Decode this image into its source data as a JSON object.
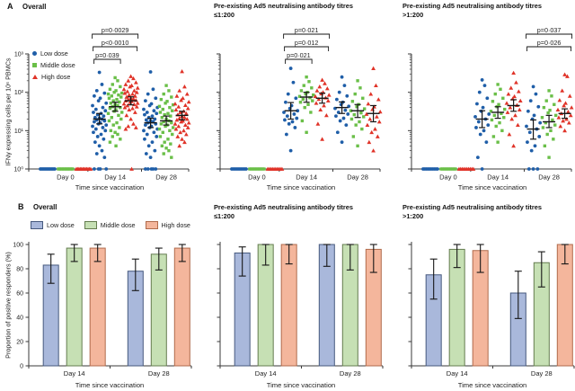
{
  "panels": {
    "a_label": "A",
    "b_label": "B",
    "overall_title": "Overall",
    "preexisting_line1": "Pre-existing Ad5 neutralising antibody titres",
    "le_line2": "≤1:200",
    "gt_line2": ">1:200"
  },
  "axes": {
    "scatter_ylabel": "IFNγ expressing cells per 10⁶ PBMCs",
    "scatter_xlabel": "Time since vaccination",
    "bar_ylabel": "Proportion of positive responders (%)",
    "bar_xlabel": "Time since vaccination",
    "scatter_ytick_labels": [
      "10⁰",
      "10¹",
      "10²",
      "10³"
    ],
    "scatter_ytick_values": [
      1,
      10,
      100,
      1000
    ],
    "scatter_xticks": [
      "Day 0",
      "Day 14",
      "Day 28"
    ],
    "bar_ytick_values": [
      0,
      20,
      40,
      60,
      80,
      100
    ],
    "bar_xticks": [
      "Day 14",
      "Day 28"
    ]
  },
  "legend_a": [
    {
      "label": "Low dose",
      "marker": "circle",
      "color": "#1f5ea8"
    },
    {
      "label": "Middle dose",
      "marker": "square",
      "color": "#6abf48"
    },
    {
      "label": "High dose",
      "marker": "triangle",
      "color": "#e03328"
    }
  ],
  "legend_b": [
    {
      "label": "Low dose",
      "fill": "#a9b8db",
      "stroke": "#46597e"
    },
    {
      "label": "Middle dose",
      "fill": "#c6e0b4",
      "stroke": "#647c4f"
    },
    {
      "label": "High dose",
      "fill": "#f4b69c",
      "stroke": "#b06b4c"
    }
  ],
  "chart_data": [
    {
      "type": "scatter",
      "title": "Overall",
      "ylog_range": [
        1,
        1000
      ],
      "groups": [
        "Day 0",
        "Day 14",
        "Day 28"
      ],
      "series": [
        {
          "name": "Low dose",
          "marker": "circle",
          "color": "#1f5ea8",
          "day0_value": 1,
          "day0_n": 12,
          "day14": [
            330,
            160,
            110,
            95,
            80,
            70,
            60,
            52,
            45,
            40,
            36,
            33,
            30,
            28,
            26,
            24,
            22,
            21,
            20,
            19,
            18,
            17,
            16,
            15,
            14,
            13,
            12,
            11,
            10,
            9,
            8,
            7,
            6,
            5,
            4,
            3,
            2.5,
            2,
            1,
            1,
            1,
            1
          ],
          "day28": [
            340,
            120,
            90,
            70,
            60,
            50,
            45,
            40,
            36,
            33,
            30,
            28,
            26,
            24,
            22,
            20,
            19,
            18,
            17,
            16,
            15,
            14,
            13,
            12,
            11,
            10,
            9,
            8,
            7,
            6,
            5,
            4,
            3,
            2.5,
            2,
            1,
            1,
            1,
            1,
            1
          ],
          "summary": {
            "day14": {
              "mean": 20,
              "lo": 15,
              "hi": 28
            },
            "day28": {
              "mean": 16,
              "lo": 12,
              "hi": 21
            }
          }
        },
        {
          "name": "Middle dose",
          "marker": "square",
          "color": "#6abf48",
          "day0_value": 1,
          "day0_n": 12,
          "day14": [
            240,
            200,
            160,
            140,
            120,
            110,
            100,
            95,
            90,
            85,
            80,
            75,
            70,
            65,
            60,
            56,
            52,
            48,
            45,
            42,
            40,
            38,
            35,
            32,
            30,
            28,
            25,
            22,
            20,
            18,
            16,
            14,
            12,
            10,
            9,
            8,
            7,
            6,
            5,
            4
          ],
          "day28": [
            150,
            110,
            90,
            75,
            65,
            58,
            52,
            47,
            43,
            40,
            36,
            33,
            30,
            28,
            26,
            24,
            22,
            20,
            18,
            17,
            16,
            15,
            14,
            13,
            12,
            11,
            10,
            9,
            8,
            7,
            6,
            5,
            4.5,
            4,
            3.5,
            3,
            2.5,
            2
          ],
          "summary": {
            "day14": {
              "mean": 42,
              "lo": 32,
              "hi": 55
            },
            "day28": {
              "mean": 18,
              "lo": 14,
              "hi": 24
            }
          }
        },
        {
          "name": "High dose",
          "marker": "triangle",
          "color": "#e03328",
          "day0_value": 1,
          "day0_n": 12,
          "day14": [
            260,
            230,
            200,
            180,
            160,
            150,
            140,
            130,
            120,
            110,
            105,
            100,
            95,
            90,
            85,
            80,
            75,
            70,
            68,
            65,
            62,
            60,
            58,
            55,
            52,
            50,
            48,
            45,
            42,
            40,
            38,
            35,
            30,
            25,
            20,
            15,
            13,
            12,
            11,
            1
          ],
          "day28": [
            350,
            140,
            110,
            90,
            80,
            70,
            62,
            56,
            50,
            46,
            42,
            38,
            35,
            32,
            30,
            28,
            26,
            24,
            22,
            21,
            20,
            19,
            18,
            17,
            16,
            15,
            14,
            13,
            12,
            11,
            10,
            9,
            8,
            7,
            6,
            5,
            4
          ],
          "summary": {
            "day14": {
              "mean": 60,
              "lo": 47,
              "hi": 76
            },
            "day28": {
              "mean": 25,
              "lo": 19,
              "hi": 32
            }
          }
        }
      ],
      "pvalues": [
        {
          "label": "p=0·0029",
          "day": "day14",
          "from": 0,
          "to": 2,
          "tier": 0
        },
        {
          "label": "p<0·0010",
          "day": "day14",
          "from": 0,
          "to": 2,
          "tier": 1
        },
        {
          "label": "p=0·039",
          "day": "day14",
          "from": 0,
          "to": 1,
          "tier": 2
        }
      ]
    },
    {
      "type": "scatter",
      "title": "Pre-existing Ad5 neutralising antibody titres ≤1:200",
      "ylog_range": [
        1,
        1000
      ],
      "groups": [
        "Day 0",
        "Day 14",
        "Day 28"
      ],
      "series": [
        {
          "name": "Low dose",
          "marker": "circle",
          "color": "#1f5ea8",
          "day0_value": 1,
          "day0_n": 10,
          "day14": [
            420,
            180,
            90,
            70,
            55,
            45,
            38,
            33,
            30,
            27,
            24,
            21,
            19,
            17,
            15,
            12,
            8,
            3
          ],
          "day28": [
            250,
            150,
            100,
            80,
            65,
            55,
            48,
            43,
            38,
            34,
            30,
            27,
            24,
            21,
            18,
            14,
            9,
            5
          ],
          "summary": {
            "day14": {
              "mean": 33,
              "lo": 20,
              "hi": 54
            },
            "day28": {
              "mean": 40,
              "lo": 28,
              "hi": 56
            }
          }
        },
        {
          "name": "Middle dose",
          "marker": "square",
          "color": "#6abf48",
          "day0_value": 1,
          "day0_n": 10,
          "day14": [
            250,
            190,
            150,
            130,
            110,
            100,
            90,
            85,
            78,
            72,
            66,
            60,
            55,
            48,
            40,
            30,
            18,
            9
          ],
          "day28": [
            200,
            130,
            90,
            70,
            58,
            48,
            42,
            37,
            33,
            29,
            26,
            23,
            20,
            17,
            14,
            11,
            7,
            4
          ],
          "summary": {
            "day14": {
              "mean": 75,
              "lo": 55,
              "hi": 100
            },
            "day28": {
              "mean": 33,
              "lo": 22,
              "hi": 48
            }
          }
        },
        {
          "name": "High dose",
          "marker": "triangle",
          "color": "#e03328",
          "day0_value": 1,
          "day0_n": 10,
          "day14": [
            210,
            170,
            140,
            125,
            110,
            100,
            92,
            85,
            78,
            72,
            66,
            60,
            52,
            45,
            35,
            25,
            15,
            6
          ],
          "day28": [
            420,
            150,
            90,
            65,
            50,
            42,
            36,
            31,
            27,
            23,
            20,
            17,
            14,
            11,
            9,
            7,
            5,
            3
          ],
          "summary": {
            "day14": {
              "mean": 70,
              "lo": 52,
              "hi": 95
            },
            "day28": {
              "mean": 28,
              "lo": 17,
              "hi": 45
            }
          }
        }
      ],
      "pvalues": [
        {
          "label": "p=0·021",
          "day": "day14",
          "from": 0,
          "to": 2,
          "tier": 0
        },
        {
          "label": "p=0·012",
          "day": "day14",
          "from": 0,
          "to": 2,
          "tier": 1
        },
        {
          "label": "p=0·021",
          "day": "day14",
          "from": 0,
          "to": 1,
          "tier": 2
        }
      ]
    },
    {
      "type": "scatter",
      "title": "Pre-existing Ad5 neutralising antibody titres >1:200",
      "ylog_range": [
        1,
        1000
      ],
      "groups": [
        "Day 0",
        "Day 14",
        "Day 28"
      ],
      "series": [
        {
          "name": "Low dose",
          "marker": "circle",
          "color": "#1f5ea8",
          "day0_value": 1,
          "day0_n": 10,
          "day14": [
            210,
            150,
            100,
            70,
            50,
            40,
            32,
            27,
            23,
            20,
            17,
            14,
            12,
            10,
            8,
            5,
            2,
            1
          ],
          "day28": [
            140,
            90,
            60,
            42,
            32,
            25,
            20,
            16,
            13,
            11,
            9,
            7,
            5,
            4,
            3,
            1,
            1,
            1
          ],
          "summary": {
            "day14": {
              "mean": 20,
              "lo": 12,
              "hi": 33
            },
            "day28": {
              "mean": 11,
              "lo": 6,
              "hi": 19
            }
          }
        },
        {
          "name": "Middle dose",
          "marker": "square",
          "color": "#6abf48",
          "day0_value": 1,
          "day0_n": 10,
          "day14": [
            160,
            120,
            90,
            70,
            58,
            48,
            42,
            36,
            32,
            28,
            25,
            22,
            19,
            16,
            13,
            10,
            7,
            5
          ],
          "day28": [
            110,
            80,
            60,
            48,
            40,
            34,
            29,
            25,
            22,
            19,
            16,
            14,
            12,
            10,
            8,
            6,
            4,
            2
          ],
          "summary": {
            "day14": {
              "mean": 30,
              "lo": 21,
              "hi": 42
            },
            "day28": {
              "mean": 17,
              "lo": 12,
              "hi": 25
            }
          }
        },
        {
          "name": "High dose",
          "marker": "triangle",
          "color": "#e03328",
          "day0_value": 1,
          "day0_n": 10,
          "day14": [
            320,
            180,
            130,
            105,
            90,
            78,
            68,
            60,
            52,
            46,
            40,
            35,
            30,
            25,
            20,
            14,
            8,
            4
          ],
          "day28": [
            290,
            260,
            110,
            80,
            62,
            52,
            45,
            40,
            35,
            31,
            28,
            25,
            22,
            20,
            18,
            16,
            13,
            10
          ],
          "summary": {
            "day14": {
              "mean": 45,
              "lo": 32,
              "hi": 64
            },
            "day28": {
              "mean": 28,
              "lo": 21,
              "hi": 37
            }
          }
        }
      ],
      "pvalues": [
        {
          "label": "p=0·037",
          "day": "day28",
          "from": 0,
          "to": 2,
          "tier": 0
        },
        {
          "label": "p=0·026",
          "day": "day28",
          "from": 0,
          "to": 2,
          "tier": 1
        }
      ]
    },
    {
      "type": "bar",
      "title": "Overall",
      "categories": [
        "Day 14",
        "Day 28"
      ],
      "ylim": [
        0,
        100
      ],
      "series": [
        {
          "name": "Low dose",
          "fill": "#a9b8db",
          "stroke": "#46597e",
          "values": [
            83,
            78
          ],
          "ci": [
            [
              68,
              92
            ],
            [
              62,
              88
            ]
          ]
        },
        {
          "name": "Middle dose",
          "fill": "#c6e0b4",
          "stroke": "#647c4f",
          "values": [
            97,
            92
          ],
          "ci": [
            [
              86,
              100
            ],
            [
              79,
              97
            ]
          ]
        },
        {
          "name": "High dose",
          "fill": "#f4b69c",
          "stroke": "#b06b4c",
          "values": [
            97,
            97
          ],
          "ci": [
            [
              86,
              100
            ],
            [
              86,
              100
            ]
          ]
        }
      ]
    },
    {
      "type": "bar",
      "title": "Pre-existing Ad5 neutralising antibody titres ≤1:200",
      "categories": [
        "Day 14",
        "Day 28"
      ],
      "ylim": [
        0,
        100
      ],
      "series": [
        {
          "name": "Low dose",
          "fill": "#a9b8db",
          "stroke": "#46597e",
          "values": [
            93,
            100
          ],
          "ci": [
            [
              74,
              98
            ],
            [
              82,
              100
            ]
          ]
        },
        {
          "name": "Middle dose",
          "fill": "#c6e0b4",
          "stroke": "#647c4f",
          "values": [
            100,
            100
          ],
          "ci": [
            [
              83,
              100
            ],
            [
              79,
              100
            ]
          ]
        },
        {
          "name": "High dose",
          "fill": "#f4b69c",
          "stroke": "#b06b4c",
          "values": [
            100,
            96
          ],
          "ci": [
            [
              84,
              100
            ],
            [
              77,
              100
            ]
          ]
        }
      ]
    },
    {
      "type": "bar",
      "title": "Pre-existing Ad5 neutralising antibody titres >1:200",
      "categories": [
        "Day 14",
        "Day 28"
      ],
      "ylim": [
        0,
        100
      ],
      "series": [
        {
          "name": "Low dose",
          "fill": "#a9b8db",
          "stroke": "#46597e",
          "values": [
            75,
            60
          ],
          "ci": [
            [
              55,
              88
            ],
            [
              39,
              78
            ]
          ]
        },
        {
          "name": "Middle dose",
          "fill": "#c6e0b4",
          "stroke": "#647c4f",
          "values": [
            96,
            85
          ],
          "ci": [
            [
              81,
              100
            ],
            [
              65,
              94
            ]
          ]
        },
        {
          "name": "High dose",
          "fill": "#f4b69c",
          "stroke": "#b06b4c",
          "values": [
            95,
            100
          ],
          "ci": [
            [
              77,
              100
            ],
            [
              84,
              100
            ]
          ]
        }
      ]
    }
  ]
}
